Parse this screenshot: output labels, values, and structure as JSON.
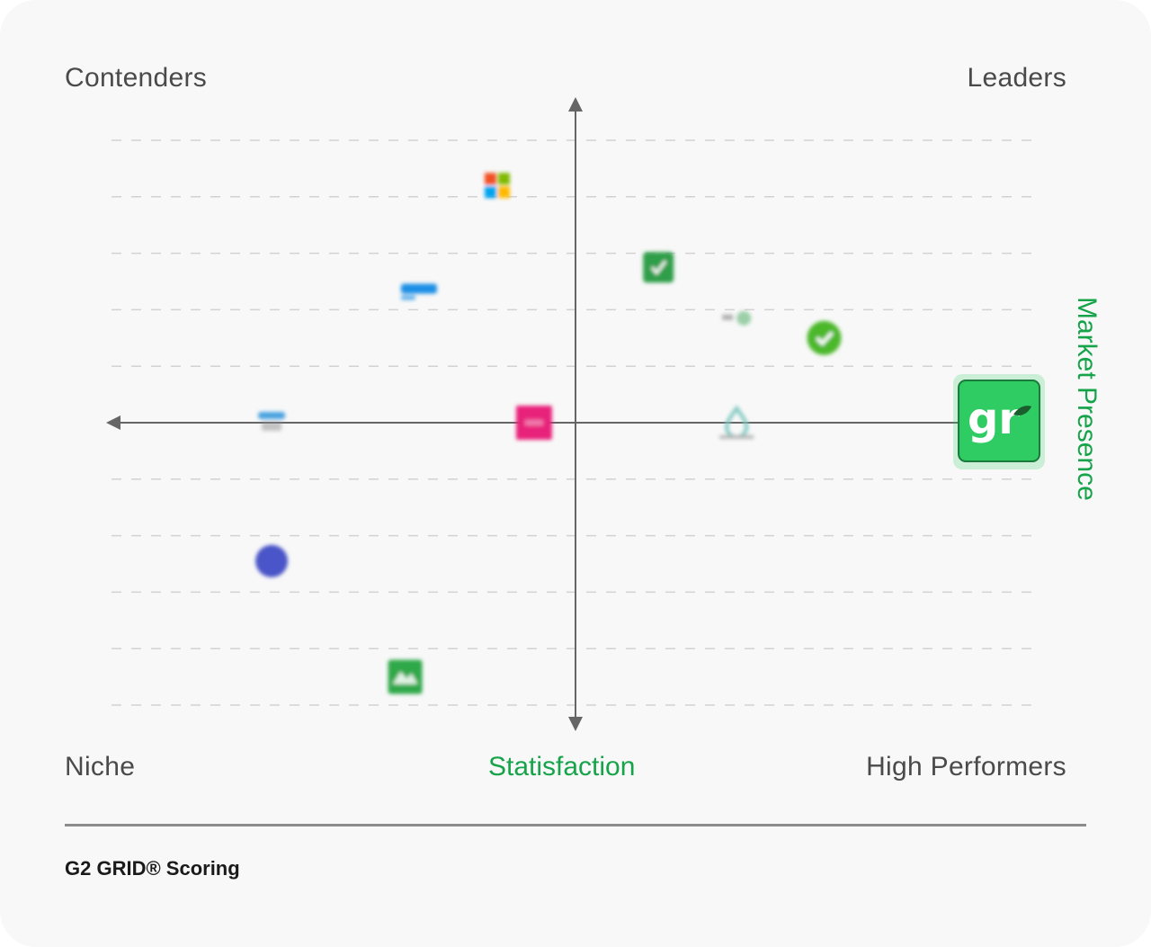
{
  "chart_data": {
    "type": "scatter",
    "quadrants": {
      "top_left": "Contenders",
      "top_right": "Leaders",
      "bottom_left": "Niche",
      "bottom_right": "High Performers"
    },
    "xlabel": "Statisfaction",
    "ylabel": "Market Presence",
    "xlim": [
      -1,
      1
    ],
    "ylim": [
      -1,
      1
    ],
    "grid": true,
    "points": [
      {
        "x": -0.17,
        "y": 0.84,
        "icon": "four-squares-logo-icon",
        "colors": [
          "#f25022",
          "#7fba00",
          "#00a4ef",
          "#ffb900"
        ],
        "blurred": true
      },
      {
        "x": -0.34,
        "y": 0.46,
        "icon": "blue-cloud-logo-icon",
        "colors": [
          "#1e90e6"
        ],
        "blurred": true
      },
      {
        "x": 0.18,
        "y": 0.55,
        "icon": "green-check-square-icon",
        "colors": [
          "#2e9e48"
        ],
        "blurred": true
      },
      {
        "x": 0.35,
        "y": 0.37,
        "icon": "small-text-logo-icon",
        "colors": [
          "#9ccfa8"
        ],
        "blurred": true
      },
      {
        "x": 0.54,
        "y": 0.3,
        "icon": "green-check-circle-icon",
        "colors": [
          "#4cb82c"
        ],
        "blurred": true
      },
      {
        "x": -0.66,
        "y": 0.0,
        "icon": "blue-wordmark-logo-icon",
        "colors": [
          "#4aa3e0"
        ],
        "blurred": true
      },
      {
        "x": -0.09,
        "y": 0.0,
        "icon": "pink-square-logo-icon",
        "colors": [
          "#e8237a"
        ],
        "blurred": true
      },
      {
        "x": 0.35,
        "y": 0.0,
        "icon": "teal-drop-logo-icon",
        "colors": [
          "#7fc8c0"
        ],
        "blurred": true
      },
      {
        "x": 0.92,
        "y": 0.0,
        "icon": "gr-logo-icon",
        "colors": [
          "#2ecc63",
          "#ffffff",
          "#1b5e2e"
        ],
        "blurred": false,
        "highlight": true
      },
      {
        "x": -0.66,
        "y": -0.49,
        "icon": "blue-circle-logo-icon",
        "colors": [
          "#4a55c8"
        ],
        "blurred": true
      },
      {
        "x": -0.37,
        "y": -0.9,
        "icon": "green-mountain-logo-icon",
        "colors": [
          "#2ea84a"
        ],
        "blurred": true
      }
    ]
  },
  "accent_color": "#16a34a",
  "footer": {
    "title": "G2 GRID® Scoring"
  }
}
